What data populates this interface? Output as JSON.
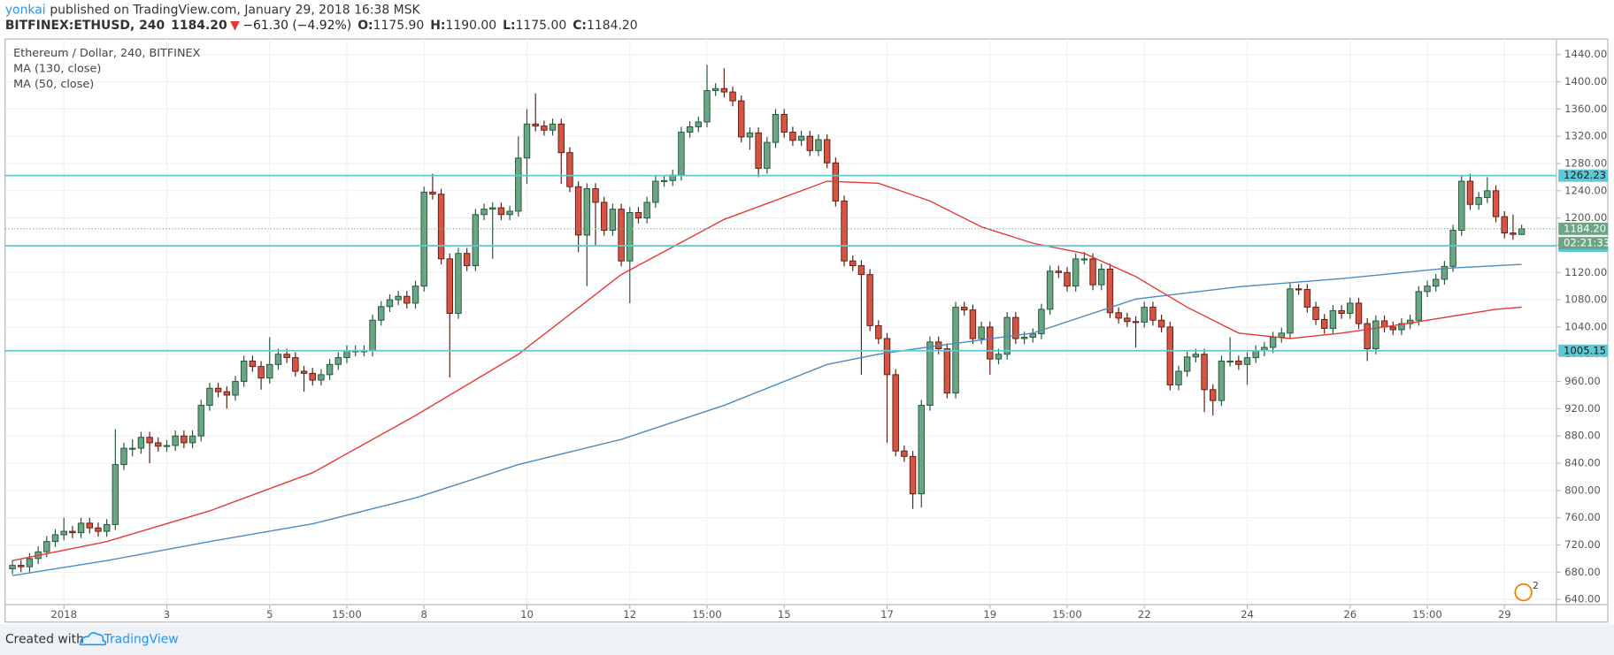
{
  "header": {
    "author": "yonkai",
    "published": "published on TradingView.com, January 29, 2018 16:38 MSK",
    "symbol": "BITFINEX:ETHUSD, 240",
    "last": "1184.20",
    "arrow": "▼",
    "change": "−61.30 (−4.92%)",
    "ohlc": [
      {
        "key": "O:",
        "value": "1175.90"
      },
      {
        "key": "H:",
        "value": "1190.00"
      },
      {
        "key": "L:",
        "value": "1175.00"
      },
      {
        "key": "C:",
        "value": "1184.20"
      }
    ]
  },
  "chart_data": {
    "type": "candlestick",
    "up_color": "#6ba583",
    "down_color": "#d75442",
    "up_border": "#225437",
    "down_border": "#5b1a13",
    "grid": true,
    "xlim": [
      -0.85,
      180.05
    ],
    "ylim": [
      632.4,
      1462.7
    ],
    "xticks": [
      {
        "value": 6,
        "label": "2018"
      },
      {
        "value": 18,
        "label": "3"
      },
      {
        "value": 30,
        "label": "5"
      },
      {
        "value": 39,
        "label": "15:00"
      },
      {
        "value": 48,
        "label": "8"
      },
      {
        "value": 60,
        "label": "10"
      },
      {
        "value": 72,
        "label": "12"
      },
      {
        "value": 81,
        "label": "15:00"
      },
      {
        "value": 90,
        "label": "15"
      },
      {
        "value": 102,
        "label": "17"
      },
      {
        "value": 114,
        "label": "19"
      },
      {
        "value": 123,
        "label": "15:00"
      },
      {
        "value": 132,
        "label": "22"
      },
      {
        "value": 144,
        "label": "24"
      },
      {
        "value": 156,
        "label": "26"
      },
      {
        "value": 165,
        "label": "15:00"
      },
      {
        "value": 174,
        "label": "29"
      }
    ],
    "yticks": [
      {
        "value": 640,
        "label": "640.00"
      },
      {
        "value": 680,
        "label": "680.00"
      },
      {
        "value": 720,
        "label": "720.00"
      },
      {
        "value": 760,
        "label": "760.00"
      },
      {
        "value": 800,
        "label": "800.00"
      },
      {
        "value": 840,
        "label": "840.00"
      },
      {
        "value": 880,
        "label": "880.00"
      },
      {
        "value": 920,
        "label": "920.00"
      },
      {
        "value": 960,
        "label": "960.00"
      },
      {
        "value": 1000,
        "label": "1000.00"
      },
      {
        "value": 1040,
        "label": "1040.00"
      },
      {
        "value": 1080,
        "label": "1080.00"
      },
      {
        "value": 1120,
        "label": "1120.00"
      },
      {
        "value": 1160,
        "label": "1160.00"
      },
      {
        "value": 1200,
        "label": "1200.00"
      },
      {
        "value": 1240,
        "label": "1240.00"
      },
      {
        "value": 1280,
        "label": "1280.00"
      },
      {
        "value": 1320,
        "label": "1320.00"
      },
      {
        "value": 1360,
        "label": "1360.00"
      },
      {
        "value": 1400,
        "label": "1400.00"
      },
      {
        "value": 1440,
        "label": "1440.00"
      }
    ],
    "level_color": "#5fc8d2",
    "levels": [
      1262.23,
      1159.26,
      1005.15
    ],
    "current": {
      "value": 1184.2,
      "label": "1184.20"
    },
    "countdown": "02:21:33",
    "badge": "2",
    "series": [
      {
        "name": "Ethereum / Dollar, 240, BITFINEX",
        "open": [
          685,
          690,
          688,
          700,
          710,
          725,
          735,
          740,
          738,
          752,
          745,
          740,
          750,
          838,
          862,
          862,
          878,
          870,
          865,
          866,
          880,
          870,
          880,
          925,
          950,
          945,
          940,
          960,
          990,
          982,
          965,
          985,
          1000,
          995,
          975,
          972,
          962,
          970,
          985,
          995,
          1005,
          1005,
          1005,
          1050,
          1070,
          1080,
          1085,
          1075,
          1100,
          1238,
          1235,
          1140,
          1060,
          1148,
          1130,
          1205,
          1213,
          1215,
          1205,
          1210,
          1288,
          1338,
          1335,
          1329,
          1338,
          1296,
          1246,
          1175,
          1243,
          1223,
          1182,
          1213,
          1137,
          1208,
          1200,
          1223,
          1254,
          1255,
          1263,
          1326,
          1334,
          1341,
          1387,
          1390,
          1385,
          1372,
          1319,
          1325,
          1273,
          1311,
          1352,
          1326,
          1314,
          1320,
          1299,
          1315,
          1281,
          1225,
          1137,
          1130,
          1117,
          1042,
          1023,
          970,
          858,
          850,
          795,
          925,
          1018,
          1008,
          943,
          1069,
          1065,
          1023,
          1040,
          993,
          1000,
          1054,
          1023,
          1025,
          1030,
          1066,
          1122,
          1120,
          1100,
          1140,
          1140,
          1102,
          1125,
          1061,
          1053,
          1048,
          1047,
          1069,
          1050,
          1040,
          955,
          975,
          996,
          1000,
          948,
          932,
          990,
          990,
          985,
          995,
          1005,
          1010,
          1025,
          1031,
          1096,
          1095,
          1069,
          1051,
          1038,
          1064,
          1060,
          1075,
          1045,
          1008,
          1049,
          1040,
          1036,
          1045,
          1050,
          1092,
          1100,
          1110,
          1129,
          1182,
          1254,
          1220,
          1230,
          1240,
          1202,
          1178,
          1175.9
        ],
        "high": [
          698,
          698,
          708,
          718,
          733,
          743,
          760,
          748,
          760,
          760,
          753,
          758,
          890,
          870,
          875,
          886,
          886,
          878,
          874,
          888,
          888,
          888,
          933,
          958,
          958,
          953,
          968,
          998,
          998,
          990,
          1025,
          1008,
          1008,
          1003,
          983,
          980,
          978,
          993,
          1003,
          1013,
          1013,
          1013,
          1058,
          1078,
          1088,
          1093,
          1093,
          1108,
          1246,
          1265,
          1243,
          1148,
          1156,
          1156,
          1213,
          1221,
          1223,
          1223,
          1218,
          1320,
          1360,
          1383,
          1343,
          1346,
          1346,
          1304,
          1254,
          1251,
          1251,
          1231,
          1221,
          1221,
          1216,
          1216,
          1231,
          1262,
          1263,
          1271,
          1334,
          1342,
          1349,
          1425,
          1398,
          1420,
          1393,
          1380,
          1333,
          1333,
          1319,
          1360,
          1360,
          1334,
          1328,
          1328,
          1323,
          1323,
          1289,
          1233,
          1145,
          1138,
          1125,
          1050,
          1031,
          978,
          866,
          858,
          933,
          1026,
          1026,
          1016,
          1077,
          1077,
          1073,
          1048,
          1048,
          1008,
          1062,
          1062,
          1033,
          1038,
          1074,
          1130,
          1130,
          1128,
          1148,
          1150,
          1148,
          1133,
          1133,
          1069,
          1061,
          1056,
          1077,
          1077,
          1058,
          1048,
          983,
          1004,
          1008,
          1008,
          956,
          998,
          1025,
          998,
          1003,
          1013,
          1018,
          1033,
          1039,
          1104,
          1103,
          1103,
          1077,
          1059,
          1072,
          1072,
          1083,
          1083,
          1053,
          1057,
          1057,
          1048,
          1053,
          1058,
          1100,
          1108,
          1118,
          1137,
          1190,
          1262,
          1265,
          1238,
          1260,
          1248,
          1210,
          1205,
          1190
        ],
        "low": [
          677,
          680,
          680,
          692,
          702,
          717,
          727,
          730,
          730,
          737,
          732,
          732,
          742,
          830,
          850,
          854,
          840,
          857,
          857,
          858,
          862,
          862,
          872,
          917,
          937,
          920,
          932,
          952,
          974,
          948,
          957,
          977,
          987,
          967,
          945,
          954,
          954,
          962,
          977,
          987,
          997,
          997,
          997,
          1042,
          1062,
          1072,
          1067,
          1067,
          1092,
          1227,
          1132,
          966,
          1052,
          1122,
          1122,
          1197,
          1140,
          1197,
          1197,
          1202,
          1250,
          1327,
          1321,
          1321,
          1250,
          1238,
          1150,
          1100,
          1160,
          1174,
          1174,
          1129,
          1075,
          1192,
          1192,
          1215,
          1246,
          1247,
          1255,
          1318,
          1326,
          1333,
          1379,
          1377,
          1364,
          1311,
          1300,
          1260,
          1265,
          1303,
          1318,
          1306,
          1306,
          1291,
          1291,
          1273,
          1217,
          1129,
          1122,
          970,
          1034,
          1015,
          870,
          850,
          842,
          773,
          775,
          917,
          1000,
          935,
          935,
          1057,
          1015,
          1015,
          970,
          985,
          992,
          1015,
          1015,
          1017,
          1022,
          1058,
          1112,
          1092,
          1092,
          1132,
          1094,
          1094,
          1053,
          1045,
          1040,
          1010,
          1039,
          1042,
          1032,
          947,
          947,
          967,
          988,
          915,
          910,
          924,
          982,
          977,
          955,
          987,
          997,
          1002,
          1017,
          1023,
          1087,
          1061,
          1043,
          1030,
          1030,
          1052,
          1052,
          1037,
          990,
          1000,
          1032,
          1028,
          1028,
          1037,
          1042,
          1084,
          1092,
          1102,
          1121,
          1174,
          1212,
          1212,
          1222,
          1194,
          1170,
          1168,
          1175
        ],
        "close": [
          690,
          688,
          700,
          710,
          725,
          735,
          740,
          738,
          752,
          745,
          740,
          750,
          838,
          862,
          862,
          878,
          870,
          865,
          866,
          880,
          870,
          880,
          925,
          950,
          945,
          940,
          960,
          990,
          982,
          965,
          985,
          1000,
          995,
          975,
          972,
          962,
          970,
          985,
          995,
          1005,
          1005,
          1005,
          1050,
          1070,
          1080,
          1085,
          1075,
          1100,
          1238,
          1235,
          1140,
          1060,
          1148,
          1130,
          1205,
          1213,
          1215,
          1205,
          1210,
          1288,
          1338,
          1335,
          1329,
          1338,
          1296,
          1246,
          1175,
          1243,
          1223,
          1182,
          1213,
          1137,
          1208,
          1200,
          1223,
          1254,
          1255,
          1263,
          1326,
          1334,
          1341,
          1387,
          1390,
          1385,
          1372,
          1319,
          1325,
          1273,
          1311,
          1352,
          1326,
          1314,
          1320,
          1299,
          1315,
          1281,
          1225,
          1137,
          1130,
          1117,
          1042,
          1023,
          970,
          858,
          850,
          795,
          925,
          1018,
          1008,
          943,
          1069,
          1065,
          1023,
          1040,
          993,
          1000,
          1054,
          1023,
          1025,
          1030,
          1066,
          1122,
          1120,
          1100,
          1140,
          1140,
          1102,
          1125,
          1061,
          1053,
          1048,
          1047,
          1069,
          1050,
          1040,
          955,
          975,
          996,
          1000,
          948,
          932,
          990,
          990,
          985,
          995,
          1005,
          1010,
          1025,
          1031,
          1096,
          1095,
          1069,
          1051,
          1038,
          1064,
          1060,
          1075,
          1045,
          1008,
          1049,
          1040,
          1036,
          1045,
          1050,
          1092,
          1100,
          1110,
          1129,
          1182,
          1254,
          1220,
          1230,
          1240,
          1202,
          1178,
          1175.9,
          1184.2
        ]
      },
      {
        "name": "MA (130, close)",
        "color": "#4a8cc2",
        "x": [
          0,
          11,
          23,
          35,
          47,
          59,
          71,
          83,
          95,
          101,
          107,
          119,
          131,
          143,
          155,
          167,
          176
        ],
        "values": [
          675,
          697,
          725,
          751,
          789,
          838,
          875,
          925,
          985,
          1000,
          1011,
          1031,
          1081,
          1099,
          1111,
          1126,
          1132
        ]
      },
      {
        "name": "MA (50, close)",
        "color": "#e53935",
        "x": [
          0,
          11,
          23,
          35,
          47,
          59,
          71,
          83,
          95,
          101,
          107,
          113,
          119,
          125,
          131,
          137,
          143,
          149,
          155,
          161,
          167,
          173,
          176
        ],
        "values": [
          697,
          725,
          770,
          826,
          910,
          1000,
          1117,
          1198,
          1254,
          1251,
          1225,
          1187,
          1163,
          1148,
          1114,
          1069,
          1031,
          1023,
          1031,
          1042,
          1054,
          1066,
          1069
        ]
      }
    ]
  },
  "footer": {
    "created": "Created with",
    "brand": "TradingView"
  }
}
